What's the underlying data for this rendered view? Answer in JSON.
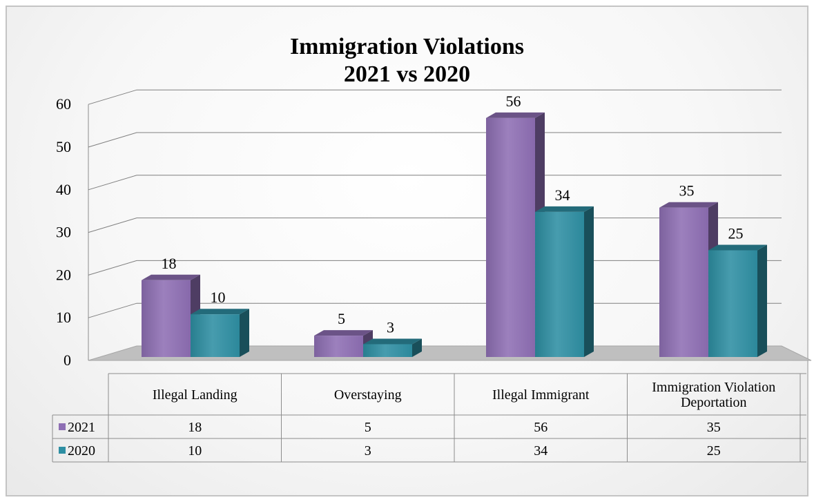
{
  "chart_data": {
    "type": "bar",
    "title": "Immigration Violations",
    "subtitle": "2021 vs 2020",
    "categories": [
      "Illegal Landing",
      "Overstaying",
      "Illegal Immigrant",
      "Immigration Violation Deportation"
    ],
    "category_lines": [
      [
        "Illegal Landing"
      ],
      [
        "Overstaying"
      ],
      [
        "Illegal Immigrant"
      ],
      [
        "Immigration Violation",
        "Deportation"
      ]
    ],
    "series": [
      {
        "name": "2021",
        "values": [
          18,
          5,
          56,
          35
        ],
        "color": "#8e6fb4"
      },
      {
        "name": "2020",
        "values": [
          10,
          3,
          34,
          25
        ],
        "color": "#2e8fa3"
      }
    ],
    "yticks": [
      0,
      10,
      20,
      30,
      40,
      50,
      60
    ],
    "ylim": [
      0,
      60
    ],
    "grid": true,
    "legend": "data-table",
    "data_table": true,
    "style": "3d-clustered-column"
  }
}
